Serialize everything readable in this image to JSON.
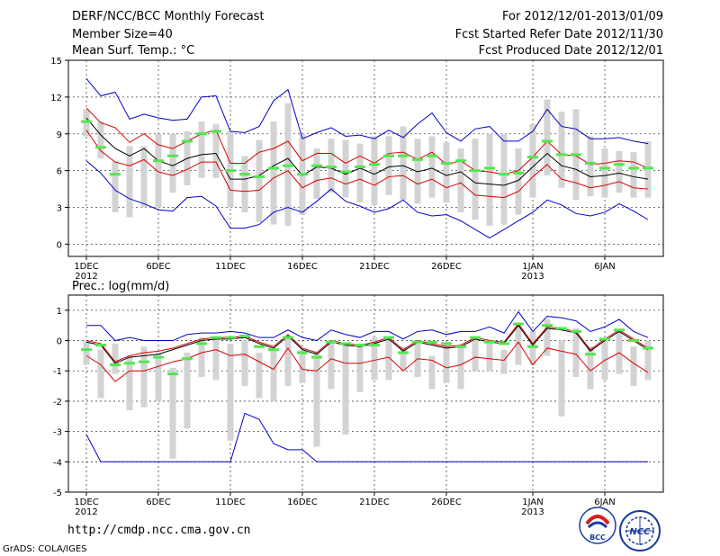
{
  "header": {
    "title": "DERF/NCC/BCC Monthly Forecast",
    "member_size": "Member Size=40",
    "variable_top": "Mean Surf. Temp.: °C",
    "period": "For 2012/12/01-2013/01/09",
    "start_date": "Fcst Started Refer Date 2012/11/30",
    "produced_date": "Fcst Produced Date 2012/12/01"
  },
  "footer": {
    "url": "http://cmdp.ncc.cma.gov.cn",
    "grads": "GrADS: COLA/IGES",
    "logo_left": "BCC",
    "logo_right": "NCC"
  },
  "colors": {
    "bar": "#d3d3d3",
    "ensemble_mean": "#50e850",
    "extreme": "#0000cc",
    "spread": "#dd0000",
    "median": "#000000"
  },
  "chart_data": [
    {
      "type": "line",
      "title": "Mean Surf. Temp.: °C",
      "ylim": [
        -1,
        15
      ],
      "yticks": [
        0,
        3,
        6,
        9,
        12,
        15
      ],
      "x_tick_labels": [
        {
          "day": 1,
          "label": "1DEC",
          "sub": "2012"
        },
        {
          "day": 6,
          "label": "6DEC",
          "sub": ""
        },
        {
          "day": 11,
          "label": "11DEC",
          "sub": ""
        },
        {
          "day": 16,
          "label": "16DEC",
          "sub": ""
        },
        {
          "day": 21,
          "label": "21DEC",
          "sub": ""
        },
        {
          "day": 26,
          "label": "26DEC",
          "sub": ""
        },
        {
          "day": 32,
          "label": "1JAN",
          "sub": "2013"
        },
        {
          "day": 37,
          "label": "6JAN",
          "sub": ""
        }
      ],
      "days": [
        1,
        2,
        3,
        4,
        5,
        6,
        7,
        8,
        9,
        10,
        11,
        12,
        13,
        14,
        15,
        16,
        17,
        18,
        19,
        20,
        21,
        22,
        23,
        24,
        25,
        26,
        27,
        28,
        29,
        30,
        31,
        32,
        33,
        34,
        35,
        36,
        37,
        38,
        39,
        40
      ],
      "bars": [
        [
          8.8,
          11
        ],
        [
          7,
          10
        ],
        [
          2.6,
          6.8
        ],
        [
          2.2,
          8
        ],
        [
          3,
          8
        ],
        [
          3,
          9
        ],
        [
          4.2,
          9
        ],
        [
          4.8,
          9.2
        ],
        [
          5.4,
          10
        ],
        [
          5.4,
          9.8
        ],
        [
          3,
          9.2
        ],
        [
          2.6,
          7.2
        ],
        [
          1.8,
          8.5
        ],
        [
          1.6,
          10
        ],
        [
          1.5,
          11.5
        ],
        [
          2.4,
          9
        ],
        [
          3.7,
          7.8
        ],
        [
          4.2,
          8.6
        ],
        [
          3.8,
          8.5
        ],
        [
          3.4,
          8.2
        ],
        [
          3.2,
          8.8
        ],
        [
          4,
          8.8
        ],
        [
          3.6,
          9.6
        ],
        [
          3.3,
          8.6
        ],
        [
          3.8,
          8.8
        ],
        [
          3.4,
          8.3
        ],
        [
          2.6,
          7.8
        ],
        [
          2,
          8.6
        ],
        [
          1.5,
          9
        ],
        [
          1.6,
          9
        ],
        [
          2.4,
          7.8
        ],
        [
          3.8,
          9.8
        ],
        [
          5.6,
          11.8
        ],
        [
          4.6,
          10.8
        ],
        [
          3.6,
          11
        ],
        [
          3.9,
          8.8
        ],
        [
          3.8,
          7.8
        ],
        [
          4.2,
          7.6
        ],
        [
          3.8,
          7.5
        ],
        [
          3.8,
          8.4
        ]
      ],
      "ensemble_mean": [
        10,
        7.9,
        5.7,
        null,
        null,
        6.8,
        7.2,
        8.4,
        9,
        9.2,
        6,
        5.7,
        5.5,
        6.2,
        6.4,
        5.7,
        6.4,
        6.3,
        5.9,
        6.3,
        6.5,
        7.2,
        7.2,
        6.9,
        7.2,
        6.6,
        6.8,
        6,
        6.2,
        5.7,
        5.8,
        7.1,
        8.4,
        7.3,
        7.3,
        6.6,
        6.2,
        6.5,
        6.2,
        6.2
      ],
      "series": [
        {
          "name": "max",
          "color": "#0000cc",
          "values": [
            13.5,
            12.1,
            12.4,
            10.2,
            10.6,
            10.3,
            10.1,
            10.2,
            12,
            12.1,
            9.2,
            9.1,
            9.6,
            11.7,
            12.6,
            8.6,
            9.1,
            9.5,
            8.8,
            8.9,
            8.6,
            9.3,
            8.7,
            9.8,
            10.7,
            9.1,
            8.4,
            9.4,
            9.6,
            8.4,
            8.4,
            9.2,
            11,
            9.6,
            9.4,
            8.6,
            8.6,
            8.7,
            8.4,
            8.2
          ]
        },
        {
          "name": "upper",
          "color": "#dd0000",
          "values": [
            11.1,
            9.9,
            9.5,
            8.3,
            9,
            8.1,
            7.8,
            8.4,
            9,
            9.3,
            6.6,
            6.6,
            7.5,
            7.8,
            8.4,
            6.8,
            7.4,
            7.4,
            6.6,
            7.2,
            6.6,
            7.4,
            7.5,
            6.9,
            7.5,
            6.5,
            6.8,
            6,
            5.9,
            5.7,
            6,
            7.1,
            8.4,
            7.3,
            7.2,
            6.5,
            6.6,
            6.8,
            6.7,
            6.2
          ]
        },
        {
          "name": "median",
          "color": "#000000",
          "values": [
            10.3,
            8.9,
            7.8,
            7.2,
            7.8,
            6.8,
            6.4,
            7,
            7.3,
            7.4,
            5.3,
            5.3,
            5.6,
            6.4,
            7,
            5.6,
            6.3,
            6.2,
            5.7,
            6.2,
            5.7,
            6.3,
            6.4,
            5.9,
            6.2,
            5.6,
            5.9,
            5,
            4.9,
            4.8,
            5.2,
            6.3,
            7.4,
            6.4,
            6.1,
            5.5,
            5.6,
            5.8,
            5.5,
            5.3
          ]
        },
        {
          "name": "lower",
          "color": "#dd0000",
          "values": [
            9.3,
            7.6,
            6.7,
            6.4,
            6.9,
            5.9,
            5.6,
            6.1,
            6.7,
            6.7,
            4.4,
            4.3,
            4.4,
            5.4,
            6,
            4.6,
            5.2,
            5.4,
            4.9,
            5.3,
            4.8,
            5.5,
            5.6,
            4.9,
            5.3,
            4.6,
            5,
            4,
            3.9,
            3.8,
            4.3,
            5.5,
            6.5,
            5.3,
            5,
            4.6,
            4.8,
            5.1,
            4.6,
            4.5
          ]
        },
        {
          "name": "min",
          "color": "#0000cc",
          "values": [
            6.8,
            5.8,
            4.4,
            3.7,
            3.3,
            2.8,
            2.7,
            3.8,
            3.9,
            3.1,
            1.3,
            1.3,
            1.6,
            2.6,
            3,
            2.6,
            3.5,
            4.5,
            3.5,
            3.1,
            2.6,
            2.9,
            3.6,
            2.6,
            2.3,
            2.4,
            1.9,
            1.2,
            0.5,
            1.2,
            1.9,
            2.6,
            3.6,
            3.2,
            2.5,
            2.3,
            2.6,
            3.3,
            2.7,
            2
          ]
        }
      ]
    },
    {
      "type": "line",
      "title": "Prec.: log(mm/d)",
      "ylim": [
        -5,
        1.5
      ],
      "yticks": [
        -5,
        -4,
        -3,
        -2,
        -1,
        0,
        1
      ],
      "x_tick_labels": [
        {
          "day": 1,
          "label": "1DEC",
          "sub": "2012"
        },
        {
          "day": 6,
          "label": "6DEC",
          "sub": ""
        },
        {
          "day": 11,
          "label": "11DEC",
          "sub": ""
        },
        {
          "day": 16,
          "label": "16DEC",
          "sub": ""
        },
        {
          "day": 21,
          "label": "21DEC",
          "sub": ""
        },
        {
          "day": 26,
          "label": "26DEC",
          "sub": ""
        },
        {
          "day": 32,
          "label": "1JAN",
          "sub": "2013"
        },
        {
          "day": 37,
          "label": "6JAN",
          "sub": ""
        }
      ],
      "days": [
        1,
        2,
        3,
        4,
        5,
        6,
        7,
        8,
        9,
        10,
        11,
        12,
        13,
        14,
        15,
        16,
        17,
        18,
        19,
        20,
        21,
        22,
        23,
        24,
        25,
        26,
        27,
        28,
        29,
        30,
        31,
        32,
        33,
        34,
        35,
        36,
        37,
        38,
        39,
        40
      ],
      "bars": [
        [
          -0.8,
          0
        ],
        [
          -1.9,
          -0.3
        ],
        [
          -1.1,
          -0.1
        ],
        [
          -2.3,
          -0.5
        ],
        [
          -2.2,
          -0.2
        ],
        [
          -2,
          -0.4
        ],
        [
          -3.9,
          -0.9
        ],
        [
          -2.9,
          -0.4
        ],
        [
          -1.2,
          0.1
        ],
        [
          -1.3,
          0.1
        ],
        [
          -3.3,
          -0.1
        ],
        [
          -1.5,
          0
        ],
        [
          -1.9,
          -0.4
        ],
        [
          -2,
          -0.3
        ],
        [
          -1.5,
          0.1
        ],
        [
          -1.4,
          -0.3
        ],
        [
          -3.5,
          -0.4
        ],
        [
          -1.6,
          0
        ],
        [
          -3.1,
          -0.1
        ],
        [
          -1.7,
          -0.1
        ],
        [
          -1.3,
          0.1
        ],
        [
          -1.3,
          0
        ],
        [
          -1,
          -0.2
        ],
        [
          -1.2,
          0
        ],
        [
          -1.6,
          -0.5
        ],
        [
          -1.4,
          -0.1
        ],
        [
          -1.6,
          -0.2
        ],
        [
          -1,
          0.1
        ],
        [
          -1,
          0
        ],
        [
          -1.1,
          -0.3
        ],
        [
          -0.8,
          0.5
        ],
        [
          -0.8,
          0.3
        ],
        [
          -0.5,
          0.7
        ],
        [
          -2.5,
          0
        ],
        [
          -1.2,
          0.4
        ],
        [
          -1.6,
          -0.2
        ],
        [
          -1.3,
          0
        ],
        [
          -1.1,
          0.3
        ],
        [
          -1.5,
          -0.2
        ],
        [
          -1.3,
          0
        ]
      ],
      "ensemble_mean": [
        -0.3,
        -0.15,
        -0.8,
        -0.75,
        -0.7,
        -0.55,
        -1.1,
        -0.6,
        -0.1,
        0.1,
        0.1,
        0.15,
        -0.2,
        -0.3,
        0.1,
        -0.4,
        -0.55,
        -0.05,
        -0.1,
        -0.15,
        -0.15,
        0.1,
        -0.4,
        -0.05,
        -0.05,
        -0.1,
        -0.2,
        0.1,
        -0.05,
        -0.1,
        0.55,
        -0.2,
        0.5,
        0.4,
        0.3,
        -0.45,
        0.05,
        0.35,
        0,
        -0.25
      ],
      "series": [
        {
          "name": "max",
          "color": "#0000cc",
          "values": [
            0.5,
            0.5,
            0,
            0.1,
            0,
            0,
            0,
            0.2,
            0.25,
            0.25,
            0.3,
            0.25,
            0.1,
            0.1,
            0.35,
            0.1,
            0,
            0.35,
            0.2,
            0.1,
            0.3,
            0.3,
            0.05,
            0.3,
            0.35,
            0.2,
            0.3,
            0.3,
            0.45,
            0.25,
            0.95,
            0.3,
            0.8,
            0.75,
            0.65,
            0.3,
            0.45,
            0.7,
            0.3,
            0.1
          ]
        },
        {
          "name": "upper",
          "color": "#dd0000",
          "values": [
            0,
            -0.1,
            -0.7,
            -0.5,
            -0.4,
            -0.35,
            -0.25,
            -0.1,
            0.05,
            0.1,
            0.1,
            0.15,
            -0.05,
            -0.2,
            0.2,
            -0.25,
            -0.4,
            0,
            -0.1,
            -0.15,
            -0.05,
            0.1,
            -0.3,
            0,
            -0.1,
            -0.2,
            -0.15,
            0.1,
            0,
            -0.05,
            0.55,
            -0.1,
            0.45,
            0.4,
            0.3,
            -0.3,
            0.05,
            0.35,
            0.05,
            -0.25
          ]
        },
        {
          "name": "median",
          "color": "#000000",
          "values": [
            -0.05,
            -0.15,
            -0.75,
            -0.55,
            -0.5,
            -0.45,
            -0.3,
            -0.15,
            0,
            0.05,
            0.05,
            0.1,
            -0.1,
            -0.25,
            0.15,
            -0.3,
            -0.45,
            -0.05,
            -0.15,
            -0.2,
            -0.1,
            0.05,
            -0.35,
            -0.05,
            -0.15,
            -0.25,
            -0.2,
            0.05,
            -0.05,
            -0.1,
            0.5,
            -0.15,
            0.4,
            0.35,
            0.25,
            -0.35,
            0,
            0.3,
            0,
            -0.3
          ]
        },
        {
          "name": "lower",
          "color": "#dd0000",
          "values": [
            -0.5,
            -0.8,
            -1.35,
            -1,
            -1,
            -0.85,
            -0.7,
            -0.6,
            -0.4,
            -0.3,
            -0.5,
            -0.45,
            -0.7,
            -0.95,
            -0.25,
            -0.95,
            -1,
            -0.6,
            -0.75,
            -0.75,
            -0.65,
            -0.55,
            -1,
            -0.6,
            -0.65,
            -0.9,
            -0.8,
            -0.55,
            -0.6,
            -0.65,
            -0.05,
            -0.8,
            -0.25,
            -0.35,
            -0.45,
            -1,
            -0.65,
            -0.4,
            -0.75,
            -1.05
          ]
        },
        {
          "name": "min",
          "color": "#0000cc",
          "values": [
            -3.1,
            -4,
            -4,
            -4,
            -4,
            -4,
            -4,
            -4,
            -4,
            -4,
            -4,
            -2.4,
            -2.6,
            -3.4,
            -3.6,
            -3.6,
            -4,
            -4,
            -4,
            -4,
            -4,
            -4,
            -4,
            -4,
            -4,
            -4,
            -4,
            -4,
            -4,
            -4,
            -4,
            -4,
            -4,
            -4,
            -4,
            -4,
            -4,
            -4,
            -4,
            -4
          ]
        }
      ]
    }
  ]
}
